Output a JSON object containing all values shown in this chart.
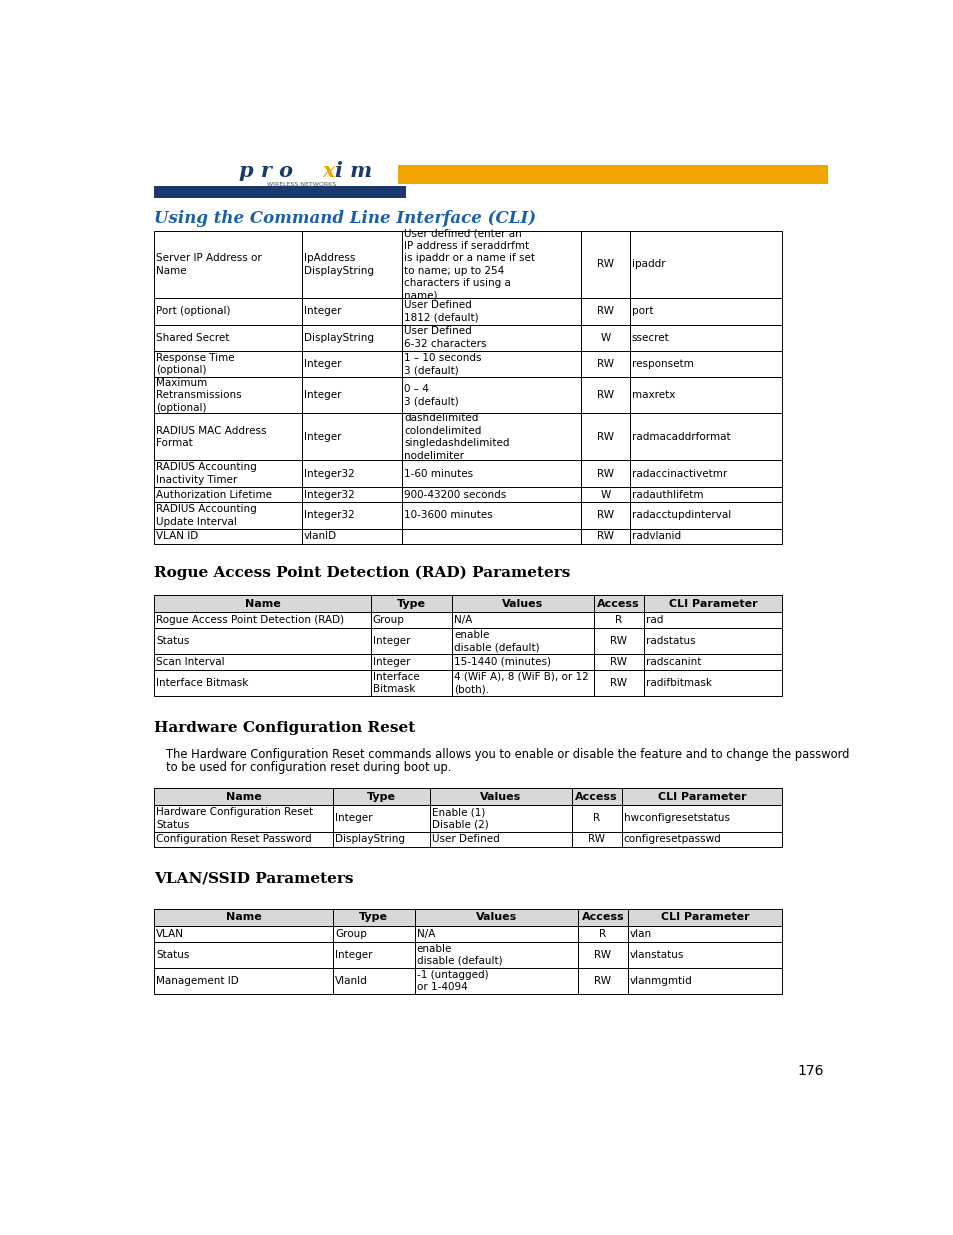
{
  "page_width": 9.54,
  "page_height": 12.35,
  "background_color": "#ffffff",
  "header_bar_blue": "#1a3a6b",
  "header_bar_orange": "#f0a500",
  "section_title_color": "#1a5fa8",
  "page_number": "176",
  "main_title": "Using the Command Line Interface (CLI)",
  "table1_rows": [
    [
      "Server IP Address or\nName",
      "IpAddress\nDisplayString",
      "User defined (enter an\nIP address if seraddrfmt\nis ipaddr or a name if set\nto name; up to 254\ncharacters if using a\nname)",
      "RW",
      "ipaddr"
    ],
    [
      "Port (optional)",
      "Integer",
      "User Defined\n1812 (default)",
      "RW",
      "port"
    ],
    [
      "Shared Secret",
      "DisplayString",
      "User Defined\n6-32 characters",
      "W",
      "ssecret"
    ],
    [
      "Response Time\n(optional)",
      "Integer",
      "1 – 10 seconds\n3 (default)",
      "RW",
      "responsetm"
    ],
    [
      "Maximum\nRetransmissions\n(optional)",
      "Integer",
      "0 – 4\n3 (default)",
      "RW",
      "maxretx"
    ],
    [
      "RADIUS MAC Address\nFormat",
      "Integer",
      "dashdelimited\ncolondelimited\nsingledashdelimited\nnodelimiter",
      "RW",
      "radmacaddrformat"
    ],
    [
      "RADIUS Accounting\nInactivity Timer",
      "Integer32",
      "1-60 minutes",
      "RW",
      "radaccinactivetmr"
    ],
    [
      "Authorization Lifetime",
      "Integer32",
      "900-43200 seconds",
      "W",
      "radauthlifetm"
    ],
    [
      "RADIUS Accounting\nUpdate Interval",
      "Integer32",
      "10-3600 minutes",
      "RW",
      "radacctupdinterval"
    ],
    [
      "VLAN ID",
      "vlanID",
      "",
      "RW",
      "radvlanid"
    ]
  ],
  "rad_section_title": "Rogue Access Point Detection (RAD) Parameters",
  "rad_table_header": [
    "Name",
    "Type",
    "Values",
    "Access",
    "CLI Parameter"
  ],
  "rad_table_rows": [
    [
      "Rogue Access Point Detection (RAD)",
      "Group",
      "N/A",
      "R",
      "rad"
    ],
    [
      "Status",
      "Integer",
      "enable\ndisable (default)",
      "RW",
      "radstatus"
    ],
    [
      "Scan Interval",
      "Integer",
      "15-1440 (minutes)",
      "RW",
      "radscanint"
    ],
    [
      "Interface Bitmask",
      "Interface\nBitmask",
      "4 (WiF A), 8 (WiF B), or 12\n(both).",
      "RW",
      "radifbitmask"
    ]
  ],
  "hw_section_title": "Hardware Configuration Reset",
  "hw_description": "The Hardware Configuration Reset commands allows you to enable or disable the feature and to change the password\nto be used for configuration reset during boot up.",
  "hw_table_header": [
    "Name",
    "Type",
    "Values",
    "Access",
    "CLI Parameter"
  ],
  "hw_table_rows": [
    [
      "Hardware Configuration Reset\nStatus",
      "Integer",
      "Enable (1)\nDisable (2)",
      "R",
      "hwconfigresetstatus"
    ],
    [
      "Configuration Reset Password",
      "DisplayString",
      "User Defined",
      "RW",
      "configresetpasswd"
    ]
  ],
  "vlan_section_title": "VLAN/SSID Parameters",
  "vlan_table_header": [
    "Name",
    "Type",
    "Values",
    "Access",
    "CLI Parameter"
  ],
  "vlan_table_rows": [
    [
      "VLAN",
      "Group",
      "N/A",
      "R",
      "vlan"
    ],
    [
      "Status",
      "Integer",
      "enable\ndisable (default)",
      "RW",
      "vlanstatus"
    ],
    [
      "Management ID",
      "VlanId",
      "-1 (untagged)\nor 1-4094",
      "RW",
      "vlanmgmtid"
    ]
  ],
  "table_border_color": "#000000",
  "table_header_bg": "#d8d8d8",
  "table_font_size": 7.5,
  "header_font_size": 8.0
}
